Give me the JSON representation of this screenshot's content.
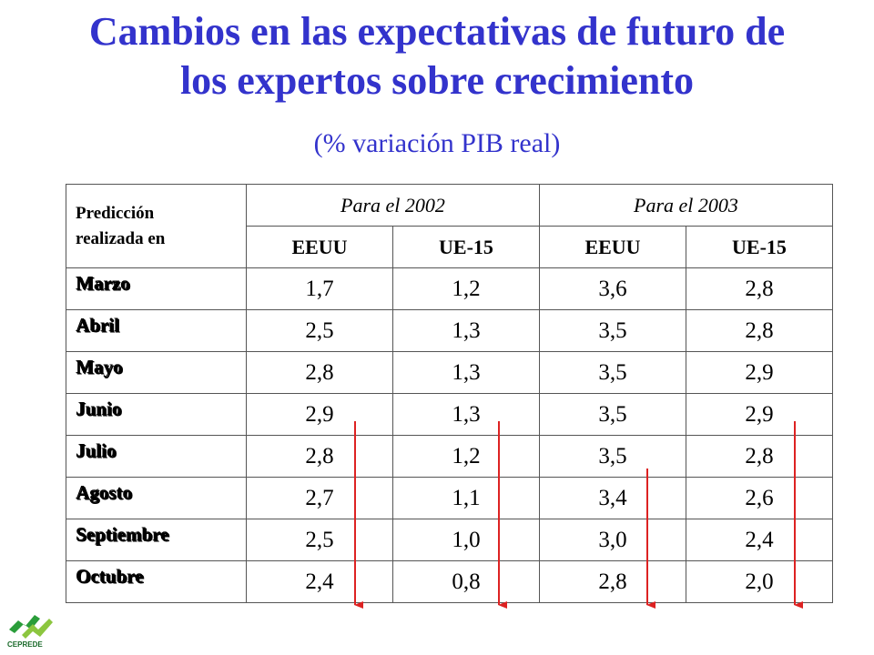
{
  "title_line1": "Cambios en las expectativas de futuro de",
  "title_line2": "los expertos sobre crecimiento",
  "subtitle": "(% variación PIB real)",
  "table": {
    "corner_line1": "Predicción",
    "corner_line2": "realizada en",
    "year_2002": "Para el 2002",
    "year_2003": "Para el 2003",
    "regions": [
      "EEUU",
      "UE-15",
      "EEUU",
      "UE-15"
    ],
    "rows": [
      {
        "month": "Marzo",
        "values": [
          "1,7",
          "1,2",
          "3,6",
          "2,8"
        ]
      },
      {
        "month": "Abril",
        "values": [
          "2,5",
          "1,3",
          "3,5",
          "2,8"
        ]
      },
      {
        "month": "Mayo",
        "values": [
          "2,8",
          "1,3",
          "3,5",
          "2,9"
        ]
      },
      {
        "month": "Junio",
        "values": [
          "2,9",
          "1,3",
          "3,5",
          "2,9"
        ]
      },
      {
        "month": "Julio",
        "values": [
          "2,8",
          "1,2",
          "3,5",
          "2,8"
        ]
      },
      {
        "month": "Agosto",
        "values": [
          "2,7",
          "1,1",
          "3,4",
          "2,6"
        ]
      },
      {
        "month": "Septiembre",
        "values": [
          "2,5",
          "1,0",
          "3,0",
          "2,4"
        ]
      },
      {
        "month": "Octubre",
        "values": [
          "2,4",
          "0,8",
          "2,8",
          "2,0"
        ]
      }
    ]
  },
  "colors": {
    "title": "#3333cc",
    "month": "#1f8a2e",
    "arrow": "#dd2222"
  },
  "logo_label": "CEPREDE",
  "icons": [
    "down-arrow-icon",
    "ceprede-logo-icon"
  ]
}
